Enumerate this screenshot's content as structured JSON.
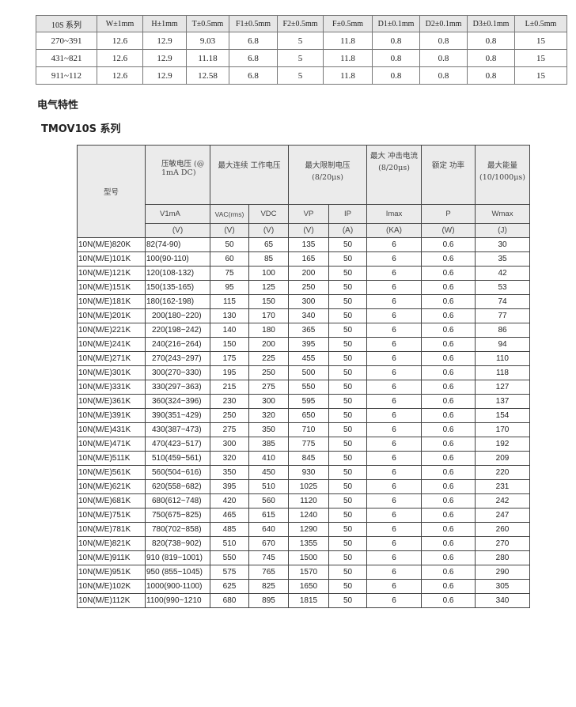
{
  "dimensions_table": {
    "headers": [
      "10S 系列",
      "W±1mm",
      "H±1mm",
      "T±0.5mm",
      "F1±0.5mm",
      "F2±0.5mm",
      "F±0.5mm",
      "D1±0.1mm",
      "D2±0.1mm",
      "D3±0.1mm",
      "L±0.5mm"
    ],
    "rows": [
      [
        "270~391",
        "12.6",
        "12.9",
        "9.03",
        "6.8",
        "5",
        "11.8",
        "0.8",
        "0.8",
        "0.8",
        "15"
      ],
      [
        "431~821",
        "12.6",
        "12.9",
        "11.18",
        "6.8",
        "5",
        "11.8",
        "0.8",
        "0.8",
        "0.8",
        "15"
      ],
      [
        "911~112",
        "12.6",
        "12.9",
        "12.58",
        "6.8",
        "5",
        "11.8",
        "0.8",
        "0.8",
        "0.8",
        "15"
      ]
    ]
  },
  "section_title": "电气特性",
  "series_title": "TMOV10S 系列",
  "spec_table": {
    "model_header": "型号",
    "group_headers": [
      "压敏电压 (@ 1mA DC)",
      "最大连续 工作电压",
      "最大限制电压 (8/20μs)",
      "最大 冲击电流 (8/20μs)",
      "额定 功率",
      "最大能量 (10/1000μs)"
    ],
    "symbols": [
      "V1mA",
      "VAC(rms)",
      "VDC",
      "VP",
      "IP",
      "Imax",
      "P",
      "Wmax"
    ],
    "units": [
      "(V)",
      "(V)",
      "(V)",
      "(V)",
      "(A)",
      "(KA)",
      "(W)",
      "(J)"
    ],
    "rows": [
      [
        "10N(M/E)820K",
        "82(74-90)",
        "50",
        "65",
        "135",
        "50",
        "6",
        "0.6",
        "30"
      ],
      [
        "10N(M/E)101K",
        "100(90-110)",
        "60",
        "85",
        "165",
        "50",
        "6",
        "0.6",
        "35"
      ],
      [
        "10N(M/E)121K",
        "120(108-132)",
        "75",
        "100",
        "200",
        "50",
        "6",
        "0.6",
        "42"
      ],
      [
        "10N(M/E)151K",
        "150(135-165)",
        "95",
        "125",
        "250",
        "50",
        "6",
        "0.6",
        "53"
      ],
      [
        "10N(M/E)181K",
        "180(162-198)",
        "115",
        "150",
        "300",
        "50",
        "6",
        "0.6",
        "74"
      ],
      [
        "10N(M/E)201K",
        "200(180~220)",
        "130",
        "170",
        "340",
        "50",
        "6",
        "0.6",
        "77"
      ],
      [
        "10N(M/E)221K",
        "220(198~242)",
        "140",
        "180",
        "365",
        "50",
        "6",
        "0.6",
        "86"
      ],
      [
        "10N(M/E)241K",
        "240(216~264)",
        "150",
        "200",
        "395",
        "50",
        "6",
        "0.6",
        "94"
      ],
      [
        "10N(M/E)271K",
        "270(243~297)",
        "175",
        "225",
        "455",
        "50",
        "6",
        "0.6",
        "110"
      ],
      [
        "10N(M/E)301K",
        "300(270~330)",
        "195",
        "250",
        "500",
        "50",
        "6",
        "0.6",
        "118"
      ],
      [
        "10N(M/E)331K",
        "330(297~363)",
        "215",
        "275",
        "550",
        "50",
        "6",
        "0.6",
        "127"
      ],
      [
        "10N(M/E)361K",
        "360(324~396)",
        "230",
        "300",
        "595",
        "50",
        "6",
        "0.6",
        "137"
      ],
      [
        "10N(M/E)391K",
        "390(351~429)",
        "250",
        "320",
        "650",
        "50",
        "6",
        "0.6",
        "154"
      ],
      [
        "10N(M/E)431K",
        "430(387~473)",
        "275",
        "350",
        "710",
        "50",
        "6",
        "0.6",
        "170"
      ],
      [
        "10N(M/E)471K",
        "470(423~517)",
        "300",
        "385",
        "775",
        "50",
        "6",
        "0.6",
        "192"
      ],
      [
        "10N(M/E)511K",
        "510(459~561)",
        "320",
        "410",
        "845",
        "50",
        "6",
        "0.6",
        "209"
      ],
      [
        "10N(M/E)561K",
        "560(504~616)",
        "350",
        "450",
        "930",
        "50",
        "6",
        "0.6",
        "220"
      ],
      [
        "10N(M/E)621K",
        "620(558~682)",
        "395",
        "510",
        "1025",
        "50",
        "6",
        "0.6",
        "231"
      ],
      [
        "10N(M/E)681K",
        "680(612~748)",
        "420",
        "560",
        "1120",
        "50",
        "6",
        "0.6",
        "242"
      ],
      [
        "10N(M/E)751K",
        "750(675~825)",
        "465",
        "615",
        "1240",
        "50",
        "6",
        "0.6",
        "247"
      ],
      [
        "10N(M/E)781K",
        "780(702~858)",
        "485",
        "640",
        "1290",
        "50",
        "6",
        "0.6",
        "260"
      ],
      [
        "10N(M/E)821K",
        "820(738~902)",
        "510",
        "670",
        "1355",
        "50",
        "6",
        "0.6",
        "270"
      ],
      [
        "10N(M/E)911K",
        "910 (819~1001)",
        "550",
        "745",
        "1500",
        "50",
        "6",
        "0.6",
        "280"
      ],
      [
        "10N(M/E)951K",
        "950 (855~1045)",
        "575",
        "765",
        "1570",
        "50",
        "6",
        "0.6",
        "290"
      ],
      [
        "10N(M/E)102K",
        "1000(900-1100)",
        "625",
        "825",
        "1650",
        "50",
        "6",
        "0.6",
        "305"
      ],
      [
        "10N(M/E)112K",
        "1100(990~1210",
        "680",
        "895",
        "1815",
        "50",
        "6",
        "0.6",
        "340"
      ]
    ]
  }
}
